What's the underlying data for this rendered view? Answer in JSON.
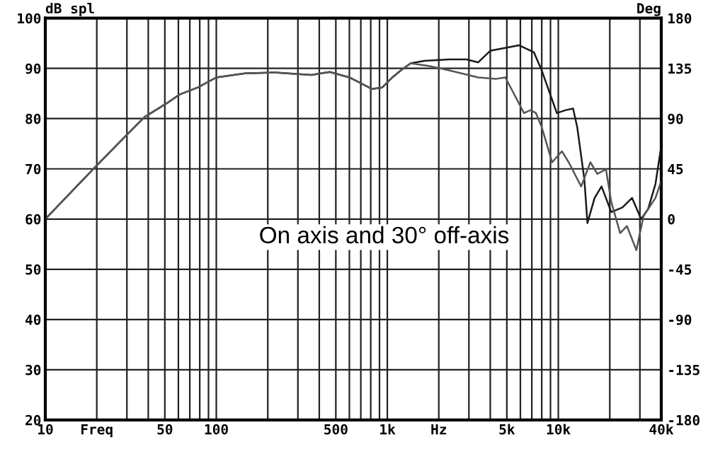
{
  "chart_data": {
    "type": "line",
    "xlabel": null,
    "ylabel": "dB spl",
    "y2label": "Deg",
    "annotations": [
      "On axis and 30° off-axis"
    ],
    "log": "x",
    "grid": true,
    "marker": "none",
    "line_style": "solid",
    "xlim": [
      10,
      40000
    ],
    "ylim": [
      20,
      100
    ],
    "xticks": [
      {
        "value": 10,
        "label": "10"
      },
      {
        "value": 20,
        "label": "Freq"
      },
      {
        "value": 30,
        "label": null
      },
      {
        "value": 40,
        "label": null
      },
      {
        "value": 50,
        "label": "50"
      },
      {
        "value": 60,
        "label": null
      },
      {
        "value": 70,
        "label": null
      },
      {
        "value": 80,
        "label": null
      },
      {
        "value": 90,
        "label": null
      },
      {
        "value": 100,
        "label": "100"
      },
      {
        "value": 200,
        "label": null
      },
      {
        "value": 300,
        "label": null
      },
      {
        "value": 400,
        "label": null
      },
      {
        "value": 500,
        "label": "500"
      },
      {
        "value": 600,
        "label": null
      },
      {
        "value": 700,
        "label": null
      },
      {
        "value": 800,
        "label": null
      },
      {
        "value": 900,
        "label": null
      },
      {
        "value": 1000,
        "label": "1k"
      },
      {
        "value": 2000,
        "label": "Hz"
      },
      {
        "value": 3000,
        "label": null
      },
      {
        "value": 4000,
        "label": null
      },
      {
        "value": 5000,
        "label": "5k"
      },
      {
        "value": 6000,
        "label": null
      },
      {
        "value": 7000,
        "label": null
      },
      {
        "value": 8000,
        "label": null
      },
      {
        "value": 9000,
        "label": null
      },
      {
        "value": 10000,
        "label": "10k"
      },
      {
        "value": 20000,
        "label": null
      },
      {
        "value": 30000,
        "label": null
      },
      {
        "value": 40000,
        "label": "40k"
      }
    ],
    "yticks": [
      20,
      30,
      40,
      50,
      60,
      70,
      80,
      90,
      100
    ],
    "y2lim": [
      -180,
      180
    ],
    "y2ticks": [
      -180,
      -135,
      -90,
      -45,
      0,
      45,
      90,
      135,
      180
    ],
    "series": [
      {
        "color": "#1a1a1a",
        "x": [
          10,
          20,
          29,
          38,
          51,
          61,
          78,
          100,
          147,
          220,
          360,
          460,
          600,
          815,
          935,
          1070,
          1200,
          1370,
          1650,
          2300,
          2900,
          3400,
          4000,
          5900,
          7200,
          8000,
          9800,
          11100,
          12200,
          12900,
          14200,
          14800,
          16300,
          17900,
          20400,
          23700,
          27000,
          30500,
          33500,
          37000,
          40000
        ],
        "values": [
          60,
          70.7,
          76.3,
          80.3,
          83,
          84.8,
          86.2,
          88.2,
          89,
          89.2,
          88.7,
          89.3,
          88.2,
          85.9,
          86.2,
          88.2,
          89.6,
          91,
          91.5,
          91.8,
          91.8,
          91.2,
          93.5,
          94.6,
          93.2,
          89.6,
          81.1,
          81.7,
          82,
          78.3,
          67.9,
          59.2,
          64.2,
          66.5,
          61.4,
          62.3,
          64.2,
          60,
          62,
          67,
          74.6
        ]
      },
      {
        "color": "#555555",
        "x": [
          10,
          20,
          29,
          38,
          51,
          61,
          78,
          100,
          147,
          220,
          360,
          460,
          600,
          815,
          935,
          1070,
          1200,
          1370,
          1800,
          2300,
          3400,
          4300,
          4900,
          6300,
          6900,
          7400,
          8000,
          9200,
          10500,
          11500,
          13600,
          15400,
          16900,
          19000,
          20400,
          23000,
          25200,
          28600,
          31500,
          37000,
          40000
        ],
        "values": [
          60,
          70.7,
          76.3,
          80.3,
          83,
          84.8,
          86.2,
          88.2,
          89,
          89.2,
          88.7,
          89.3,
          88.2,
          85.9,
          86.2,
          88.2,
          89.6,
          91,
          90.4,
          89.6,
          88.2,
          87.9,
          88.2,
          81.1,
          81.7,
          81.1,
          78.3,
          71.3,
          73.5,
          71.3,
          66.5,
          71.3,
          69,
          69.9,
          63.4,
          57.2,
          58.6,
          53.8,
          60.6,
          64.2,
          67.6
        ]
      }
    ]
  }
}
